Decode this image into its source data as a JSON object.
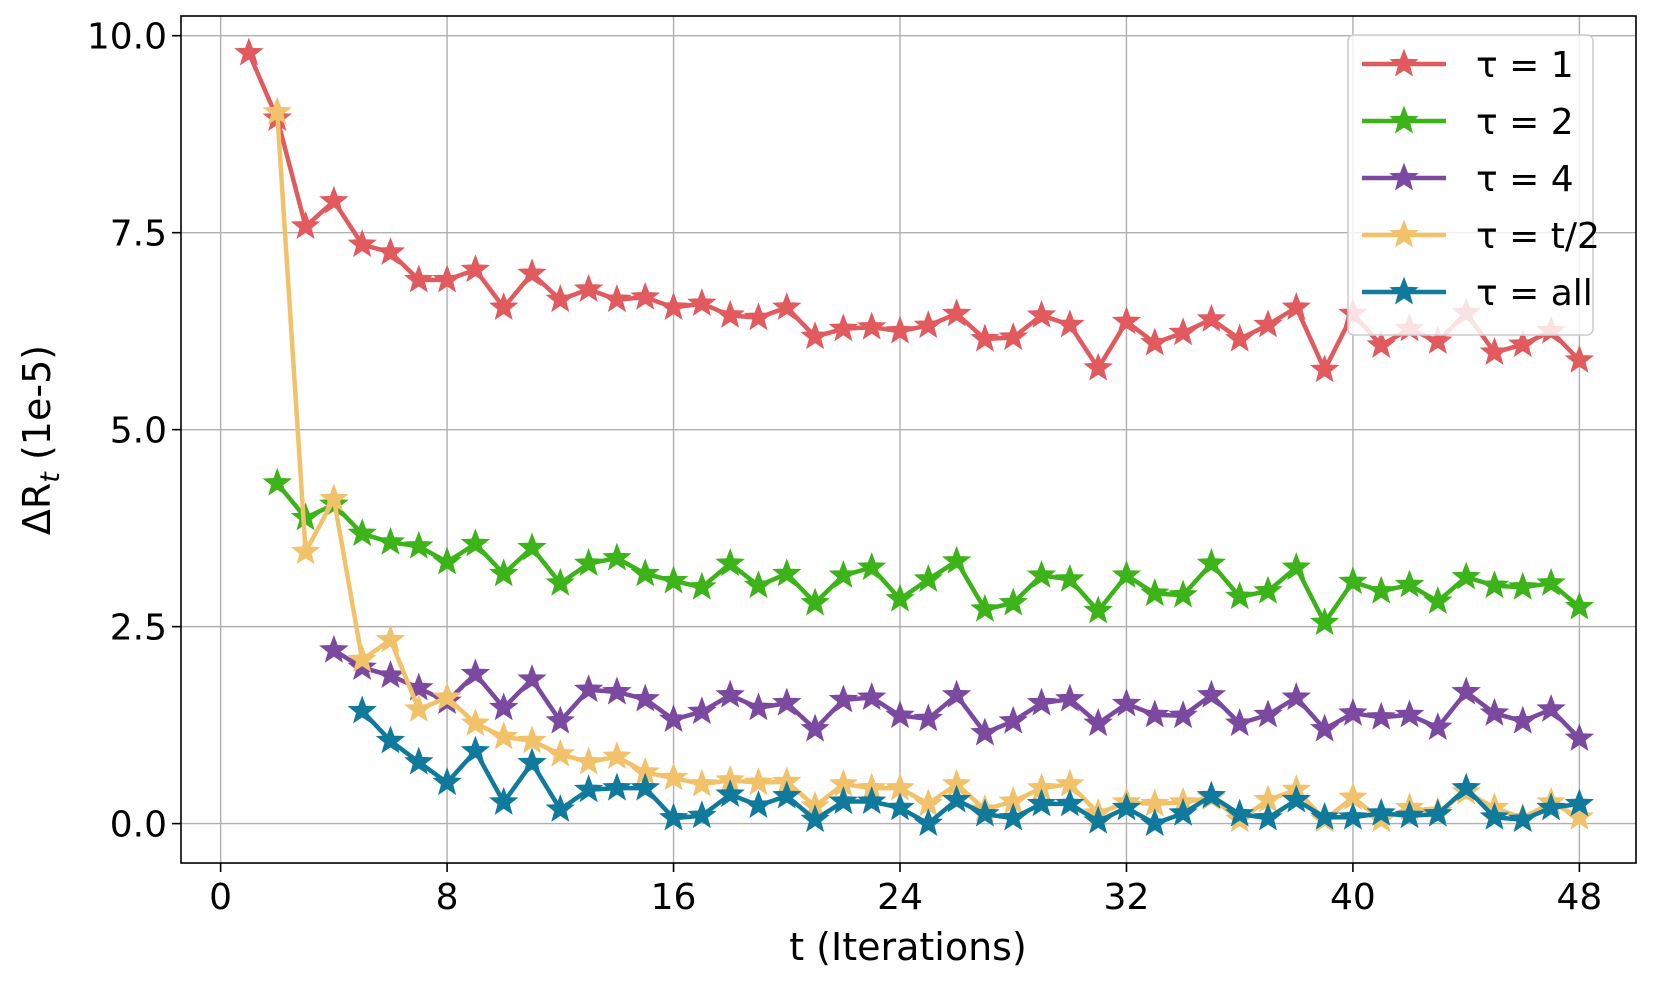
{
  "chart_data": {
    "type": "line",
    "title": "",
    "xlabel": "t (Iterations)",
    "ylabel": "ΔR",
    "ylabel_subscript": "t",
    "ylabel_suffix": " (1e-5)",
    "xlim": [
      -1.4,
      50
    ],
    "ylim": [
      -0.5,
      10.25
    ],
    "xticks": [
      0,
      8,
      16,
      24,
      32,
      40,
      48
    ],
    "yticks": [
      0.0,
      2.5,
      5.0,
      7.5,
      10.0
    ],
    "ytick_labels": [
      "0.0",
      "2.5",
      "5.0",
      "7.5",
      "10.0"
    ],
    "grid": true,
    "legend_position": "top-right",
    "marker": "star",
    "series": [
      {
        "name": "τ = 1",
        "color": "#e05a5e",
        "x": [
          1,
          2,
          3,
          4,
          5,
          6,
          7,
          8,
          9,
          10,
          11,
          12,
          13,
          14,
          15,
          16,
          17,
          18,
          19,
          20,
          21,
          22,
          23,
          24,
          25,
          26,
          27,
          28,
          29,
          30,
          31,
          32,
          33,
          34,
          35,
          36,
          37,
          38,
          39,
          40,
          41,
          42,
          43,
          44,
          45,
          46,
          47,
          48
        ],
        "values": [
          9.78,
          8.95,
          7.58,
          7.9,
          7.35,
          7.25,
          6.9,
          6.9,
          7.03,
          6.55,
          6.98,
          6.65,
          6.78,
          6.65,
          6.68,
          6.55,
          6.6,
          6.45,
          6.42,
          6.55,
          6.18,
          6.28,
          6.3,
          6.25,
          6.32,
          6.47,
          6.15,
          6.17,
          6.45,
          6.33,
          5.78,
          6.37,
          6.1,
          6.23,
          6.4,
          6.15,
          6.33,
          6.55,
          5.76,
          6.47,
          6.07,
          6.28,
          6.12,
          6.48,
          5.98,
          6.08,
          6.25,
          5.88
        ]
      },
      {
        "name": "τ = 2",
        "color": "#3db31a",
        "x": [
          2,
          3,
          4,
          5,
          6,
          7,
          8,
          9,
          10,
          11,
          12,
          13,
          14,
          15,
          16,
          17,
          18,
          19,
          20,
          21,
          22,
          23,
          24,
          25,
          26,
          27,
          28,
          29,
          30,
          31,
          32,
          33,
          34,
          35,
          36,
          37,
          38,
          39,
          40,
          41,
          42,
          43,
          44,
          45,
          46,
          47,
          48
        ],
        "values": [
          4.32,
          3.88,
          4.05,
          3.68,
          3.57,
          3.52,
          3.32,
          3.55,
          3.17,
          3.5,
          3.05,
          3.3,
          3.37,
          3.17,
          3.08,
          3.0,
          3.3,
          3.02,
          3.17,
          2.8,
          3.15,
          3.25,
          2.85,
          3.1,
          3.33,
          2.72,
          2.8,
          3.15,
          3.1,
          2.7,
          3.15,
          2.92,
          2.9,
          3.3,
          2.88,
          2.95,
          3.25,
          2.55,
          3.07,
          2.95,
          3.03,
          2.82,
          3.13,
          3.02,
          3.0,
          3.05,
          2.75
        ]
      },
      {
        "name": "τ = 4",
        "color": "#7b4aa0",
        "x": [
          4,
          5,
          6,
          7,
          8,
          9,
          10,
          11,
          12,
          13,
          14,
          15,
          16,
          17,
          18,
          19,
          20,
          21,
          22,
          23,
          24,
          25,
          26,
          27,
          28,
          29,
          30,
          31,
          32,
          33,
          34,
          35,
          36,
          37,
          38,
          39,
          40,
          41,
          42,
          43,
          44,
          45,
          46,
          47,
          48
        ],
        "values": [
          2.2,
          1.98,
          1.88,
          1.72,
          1.55,
          1.9,
          1.47,
          1.83,
          1.3,
          1.7,
          1.67,
          1.58,
          1.32,
          1.42,
          1.63,
          1.47,
          1.53,
          1.2,
          1.57,
          1.6,
          1.37,
          1.33,
          1.63,
          1.15,
          1.3,
          1.53,
          1.58,
          1.27,
          1.52,
          1.38,
          1.37,
          1.63,
          1.27,
          1.38,
          1.6,
          1.2,
          1.4,
          1.35,
          1.38,
          1.22,
          1.67,
          1.4,
          1.3,
          1.45,
          1.08
        ]
      },
      {
        "name": "τ = t/2",
        "color": "#f2c26b",
        "x": [
          2,
          3,
          4,
          5,
          6,
          7,
          8,
          9,
          10,
          11,
          12,
          13,
          14,
          15,
          16,
          17,
          18,
          19,
          20,
          21,
          22,
          23,
          24,
          25,
          26,
          27,
          28,
          29,
          30,
          31,
          32,
          33,
          34,
          35,
          36,
          37,
          38,
          39,
          40,
          41,
          42,
          43,
          44,
          45,
          46,
          47,
          48
        ],
        "values": [
          9.03,
          3.45,
          4.12,
          2.08,
          2.33,
          1.45,
          1.6,
          1.27,
          1.1,
          1.05,
          0.88,
          0.78,
          0.85,
          0.65,
          0.58,
          0.5,
          0.55,
          0.52,
          0.53,
          0.22,
          0.5,
          0.45,
          0.45,
          0.25,
          0.5,
          0.18,
          0.28,
          0.45,
          0.5,
          0.13,
          0.27,
          0.25,
          0.27,
          0.33,
          0.05,
          0.3,
          0.43,
          0.05,
          0.33,
          0.05,
          0.2,
          0.15,
          0.4,
          0.2,
          0.07,
          0.27,
          0.08
        ]
      },
      {
        "name": "τ = all",
        "color": "#107a9c",
        "x": [
          5,
          6,
          7,
          8,
          9,
          10,
          11,
          12,
          13,
          14,
          15,
          16,
          17,
          18,
          19,
          20,
          21,
          22,
          23,
          24,
          25,
          26,
          27,
          28,
          29,
          30,
          31,
          32,
          33,
          34,
          35,
          36,
          37,
          38,
          39,
          40,
          41,
          42,
          43,
          44,
          45,
          46,
          47,
          48
        ],
        "values": [
          1.43,
          1.05,
          0.78,
          0.52,
          0.92,
          0.27,
          0.77,
          0.18,
          0.43,
          0.45,
          0.45,
          0.07,
          0.1,
          0.37,
          0.23,
          0.35,
          0.05,
          0.28,
          0.28,
          0.2,
          0.0,
          0.3,
          0.12,
          0.07,
          0.25,
          0.25,
          0.03,
          0.2,
          0.0,
          0.13,
          0.35,
          0.12,
          0.07,
          0.3,
          0.08,
          0.08,
          0.13,
          0.1,
          0.12,
          0.45,
          0.08,
          0.05,
          0.2,
          0.25
        ]
      }
    ]
  }
}
